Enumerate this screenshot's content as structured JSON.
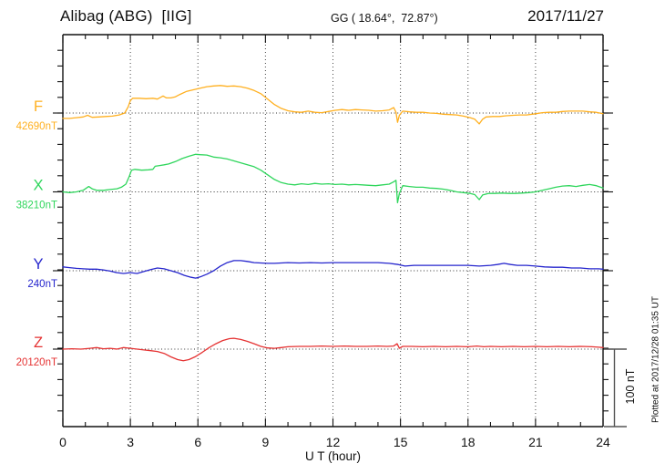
{
  "header": {
    "station": "Alibag (ABG)  [IIG]",
    "coords": "GG ( 18.64°,  72.87°)",
    "date": "2017/11/27"
  },
  "footer": {
    "xlabel": "U T (hour)"
  },
  "side": {
    "scale_label": "100 nT",
    "plotted_at": "Plotted at 2017/12/28 01:35 UT"
  },
  "colors": {
    "axis": "#111111",
    "grid_dots": "#444444",
    "scale_bar": "#555555",
    "F": "#ffb020",
    "X": "#2fd65c",
    "Y": "#2525cd",
    "Z": "#e53333"
  },
  "chart_data": {
    "type": "line",
    "title": "Alibag (ABG) [IIG] magnetogram, 2017/11/27",
    "xlabel": "U T (hour)",
    "x_range": [
      0,
      24
    ],
    "x_ticks": [
      0,
      3,
      6,
      9,
      12,
      15,
      18,
      21,
      24
    ],
    "grid": "dotted vertical lines every 3 h, dotted horizontal baseline per component",
    "amplitude_scale": {
      "label": "100 nT",
      "nT": 100
    },
    "series": [
      {
        "name": "F",
        "baseline_label": "42690nT",
        "color_key": "F",
        "points": [
          [
            0,
            -7
          ],
          [
            0.3,
            -7
          ],
          [
            0.6,
            -6
          ],
          [
            0.9,
            -5
          ],
          [
            1.1,
            -3
          ],
          [
            1.3,
            -5.5
          ],
          [
            1.6,
            -5
          ],
          [
            1.9,
            -4.5
          ],
          [
            2.2,
            -4
          ],
          [
            2.5,
            -2.5
          ],
          [
            2.75,
            0
          ],
          [
            2.9,
            8
          ],
          [
            3.0,
            16
          ],
          [
            3.1,
            19
          ],
          [
            3.4,
            19
          ],
          [
            3.7,
            18.5
          ],
          [
            4.0,
            19
          ],
          [
            4.2,
            18
          ],
          [
            4.45,
            22
          ],
          [
            4.6,
            19.5
          ],
          [
            4.8,
            19.5
          ],
          [
            5.0,
            21
          ],
          [
            5.2,
            24
          ],
          [
            5.5,
            28
          ],
          [
            5.8,
            30
          ],
          [
            6.1,
            32
          ],
          [
            6.4,
            34
          ],
          [
            6.7,
            35
          ],
          [
            7.0,
            35.5
          ],
          [
            7.3,
            34.5
          ],
          [
            7.6,
            35
          ],
          [
            7.9,
            34
          ],
          [
            8.2,
            32
          ],
          [
            8.5,
            29
          ],
          [
            8.8,
            25
          ],
          [
            9.1,
            18
          ],
          [
            9.4,
            11
          ],
          [
            9.7,
            6
          ],
          [
            10.0,
            3
          ],
          [
            10.3,
            1.5
          ],
          [
            10.6,
            1
          ],
          [
            10.9,
            2.5
          ],
          [
            11.2,
            1
          ],
          [
            11.5,
            0.5
          ],
          [
            11.8,
            2
          ],
          [
            12.1,
            3.5
          ],
          [
            12.4,
            4.5
          ],
          [
            12.7,
            3.5
          ],
          [
            13.0,
            4.5
          ],
          [
            13.3,
            4
          ],
          [
            13.6,
            3.5
          ],
          [
            13.9,
            2.5
          ],
          [
            14.2,
            3
          ],
          [
            14.5,
            4
          ],
          [
            14.7,
            7
          ],
          [
            14.8,
            1
          ],
          [
            14.87,
            -12
          ],
          [
            14.95,
            -3
          ],
          [
            15.1,
            2.5
          ],
          [
            15.4,
            1.5
          ],
          [
            15.7,
            1
          ],
          [
            16.0,
            1
          ],
          [
            16.3,
            0
          ],
          [
            16.6,
            -0.5
          ],
          [
            16.9,
            -1.5
          ],
          [
            17.2,
            -2
          ],
          [
            17.5,
            -2.5
          ],
          [
            17.8,
            -4
          ],
          [
            18.1,
            -6
          ],
          [
            18.3,
            -8
          ],
          [
            18.5,
            -14
          ],
          [
            18.65,
            -8
          ],
          [
            18.8,
            -5
          ],
          [
            19.1,
            -4.5
          ],
          [
            19.4,
            -4.5
          ],
          [
            19.7,
            -3.5
          ],
          [
            20.0,
            -3
          ],
          [
            20.3,
            -2.5
          ],
          [
            20.6,
            -2.5
          ],
          [
            21.0,
            -1
          ],
          [
            21.3,
            0.5
          ],
          [
            21.6,
            1
          ],
          [
            21.9,
            1
          ],
          [
            22.2,
            2
          ],
          [
            22.5,
            2.5
          ],
          [
            22.8,
            2.5
          ],
          [
            23.1,
            2.5
          ],
          [
            23.4,
            1.5
          ],
          [
            23.7,
            1
          ],
          [
            24.0,
            -1
          ]
        ]
      },
      {
        "name": "X",
        "baseline_label": "38210nT",
        "color_key": "X",
        "points": [
          [
            0,
            0
          ],
          [
            0.3,
            -1
          ],
          [
            0.6,
            0
          ],
          [
            0.9,
            2
          ],
          [
            1.15,
            7
          ],
          [
            1.3,
            4
          ],
          [
            1.5,
            2
          ],
          [
            1.8,
            2
          ],
          [
            2.1,
            3
          ],
          [
            2.4,
            4
          ],
          [
            2.6,
            6
          ],
          [
            2.8,
            10
          ],
          [
            2.95,
            20
          ],
          [
            3.05,
            28
          ],
          [
            3.2,
            29
          ],
          [
            3.5,
            28
          ],
          [
            3.8,
            28.5
          ],
          [
            4.0,
            29
          ],
          [
            4.1,
            33
          ],
          [
            4.3,
            34
          ],
          [
            4.5,
            35
          ],
          [
            4.7,
            36
          ],
          [
            5.0,
            39
          ],
          [
            5.3,
            43
          ],
          [
            5.6,
            46
          ],
          [
            5.9,
            48.5
          ],
          [
            6.1,
            48
          ],
          [
            6.4,
            47.5
          ],
          [
            6.7,
            45
          ],
          [
            7.0,
            44
          ],
          [
            7.3,
            42.5
          ],
          [
            7.6,
            40
          ],
          [
            7.9,
            37.5
          ],
          [
            8.2,
            35
          ],
          [
            8.5,
            32.5
          ],
          [
            8.8,
            28
          ],
          [
            9.1,
            22
          ],
          [
            9.4,
            16
          ],
          [
            9.7,
            12
          ],
          [
            10.0,
            10
          ],
          [
            10.3,
            9
          ],
          [
            10.6,
            10.5
          ],
          [
            10.9,
            9.5
          ],
          [
            11.2,
            11
          ],
          [
            11.5,
            10
          ],
          [
            11.8,
            10.5
          ],
          [
            12.1,
            9.5
          ],
          [
            12.4,
            10
          ],
          [
            12.7,
            9
          ],
          [
            13.0,
            9.5
          ],
          [
            13.3,
            9
          ],
          [
            13.6,
            8.5
          ],
          [
            13.9,
            8
          ],
          [
            14.2,
            9
          ],
          [
            14.5,
            10
          ],
          [
            14.7,
            13
          ],
          [
            14.8,
            15
          ],
          [
            14.87,
            -14
          ],
          [
            14.95,
            -2
          ],
          [
            15.1,
            8
          ],
          [
            15.4,
            7
          ],
          [
            15.7,
            6
          ],
          [
            16.0,
            6
          ],
          [
            16.3,
            5
          ],
          [
            16.6,
            4.5
          ],
          [
            16.9,
            3.5
          ],
          [
            17.2,
            2
          ],
          [
            17.5,
            0
          ],
          [
            17.8,
            -1
          ],
          [
            18.1,
            -2
          ],
          [
            18.3,
            -3.5
          ],
          [
            18.5,
            -10
          ],
          [
            18.65,
            -4
          ],
          [
            18.9,
            -2
          ],
          [
            19.2,
            -2
          ],
          [
            19.5,
            -1.5
          ],
          [
            19.8,
            -2
          ],
          [
            20.1,
            -2
          ],
          [
            20.4,
            -1.5
          ],
          [
            20.7,
            -1
          ],
          [
            21.0,
            0
          ],
          [
            21.3,
            2
          ],
          [
            21.6,
            4
          ],
          [
            21.9,
            6
          ],
          [
            22.2,
            7.5
          ],
          [
            22.5,
            8
          ],
          [
            22.8,
            7
          ],
          [
            23.1,
            8.5
          ],
          [
            23.4,
            9.5
          ],
          [
            23.7,
            8
          ],
          [
            24.0,
            5
          ]
        ]
      },
      {
        "name": "Y",
        "baseline_label": "240nT",
        "color_key": "Y",
        "points": [
          [
            0,
            5
          ],
          [
            0.3,
            4
          ],
          [
            0.6,
            3
          ],
          [
            0.9,
            2.5
          ],
          [
            1.2,
            2
          ],
          [
            1.5,
            2
          ],
          [
            1.8,
            1
          ],
          [
            2.1,
            -0.5
          ],
          [
            2.4,
            -2.5
          ],
          [
            2.7,
            -3.5
          ],
          [
            3.0,
            -2.5
          ],
          [
            3.3,
            -3.5
          ],
          [
            3.6,
            -1
          ],
          [
            3.9,
            1.5
          ],
          [
            4.2,
            3.5
          ],
          [
            4.5,
            2.5
          ],
          [
            4.8,
            0
          ],
          [
            5.1,
            -2.5
          ],
          [
            5.4,
            -6
          ],
          [
            5.7,
            -8.5
          ],
          [
            5.9,
            -9.5
          ],
          [
            6.1,
            -8
          ],
          [
            6.4,
            -4.5
          ],
          [
            6.7,
            0
          ],
          [
            7.0,
            6
          ],
          [
            7.3,
            10.5
          ],
          [
            7.6,
            13
          ],
          [
            7.9,
            13
          ],
          [
            8.2,
            12
          ],
          [
            8.5,
            10.5
          ],
          [
            8.8,
            10
          ],
          [
            9.1,
            9.5
          ],
          [
            9.4,
            9.5
          ],
          [
            9.7,
            10
          ],
          [
            10.0,
            10.5
          ],
          [
            10.5,
            10
          ],
          [
            11.0,
            10.5
          ],
          [
            11.5,
            10
          ],
          [
            12.0,
            10.5
          ],
          [
            12.5,
            10.5
          ],
          [
            13.0,
            10.5
          ],
          [
            13.5,
            10.5
          ],
          [
            14.0,
            10.5
          ],
          [
            14.5,
            9.5
          ],
          [
            14.9,
            8
          ],
          [
            15.2,
            6
          ],
          [
            15.6,
            7
          ],
          [
            16.0,
            7
          ],
          [
            16.5,
            7
          ],
          [
            17.0,
            7
          ],
          [
            17.5,
            7
          ],
          [
            18.0,
            7
          ],
          [
            18.5,
            6
          ],
          [
            19.0,
            7
          ],
          [
            19.3,
            8
          ],
          [
            19.6,
            9.5
          ],
          [
            19.9,
            8
          ],
          [
            20.2,
            7
          ],
          [
            20.6,
            7
          ],
          [
            21.0,
            6
          ],
          [
            21.4,
            5
          ],
          [
            21.8,
            4.5
          ],
          [
            22.2,
            4.5
          ],
          [
            22.6,
            3.5
          ],
          [
            23.0,
            3.5
          ],
          [
            23.4,
            2.5
          ],
          [
            23.8,
            2.5
          ],
          [
            24.0,
            2
          ]
        ]
      },
      {
        "name": "Z",
        "baseline_label": "20120nT",
        "color_key": "Z",
        "points": [
          [
            0,
            0
          ],
          [
            0.4,
            0.5
          ],
          [
            0.8,
            0
          ],
          [
            1.2,
            1
          ],
          [
            1.5,
            2
          ],
          [
            1.8,
            0.5
          ],
          [
            2.1,
            1
          ],
          [
            2.4,
            0
          ],
          [
            2.7,
            2
          ],
          [
            3.0,
            1
          ],
          [
            3.3,
            0
          ],
          [
            3.6,
            -1
          ],
          [
            3.9,
            -2
          ],
          [
            4.2,
            -3
          ],
          [
            4.5,
            -5.5
          ],
          [
            4.8,
            -10
          ],
          [
            5.1,
            -13.5
          ],
          [
            5.35,
            -15
          ],
          [
            5.6,
            -13.5
          ],
          [
            5.9,
            -9.5
          ],
          [
            6.2,
            -4
          ],
          [
            6.5,
            2
          ],
          [
            6.8,
            7
          ],
          [
            7.1,
            11
          ],
          [
            7.4,
            13.5
          ],
          [
            7.6,
            14
          ],
          [
            7.9,
            12.5
          ],
          [
            8.2,
            10
          ],
          [
            8.5,
            7
          ],
          [
            8.8,
            3.5
          ],
          [
            9.1,
            1.5
          ],
          [
            9.4,
            1
          ],
          [
            9.7,
            2
          ],
          [
            10.0,
            3
          ],
          [
            10.5,
            3.5
          ],
          [
            11.0,
            3.5
          ],
          [
            11.5,
            4
          ],
          [
            12.0,
            3.5
          ],
          [
            12.5,
            4
          ],
          [
            13.0,
            3.5
          ],
          [
            13.5,
            3.5
          ],
          [
            14.0,
            4
          ],
          [
            14.4,
            3.5
          ],
          [
            14.7,
            4
          ],
          [
            14.85,
            7
          ],
          [
            14.95,
            1
          ],
          [
            15.1,
            3.5
          ],
          [
            15.5,
            3.5
          ],
          [
            16.0,
            3
          ],
          [
            16.5,
            3.5
          ],
          [
            17.0,
            3
          ],
          [
            17.5,
            3.5
          ],
          [
            18.0,
            3
          ],
          [
            18.4,
            4
          ],
          [
            18.7,
            3
          ],
          [
            19.0,
            3.5
          ],
          [
            19.5,
            3
          ],
          [
            20.0,
            3.5
          ],
          [
            20.5,
            3
          ],
          [
            21.0,
            3.5
          ],
          [
            21.5,
            3
          ],
          [
            22.0,
            3.5
          ],
          [
            22.5,
            3
          ],
          [
            23.0,
            3.5
          ],
          [
            23.5,
            3
          ],
          [
            23.8,
            2.5
          ],
          [
            24.0,
            2
          ]
        ]
      }
    ],
    "units": "points are [UT hour, offset in nT from the labelled baseline]"
  }
}
